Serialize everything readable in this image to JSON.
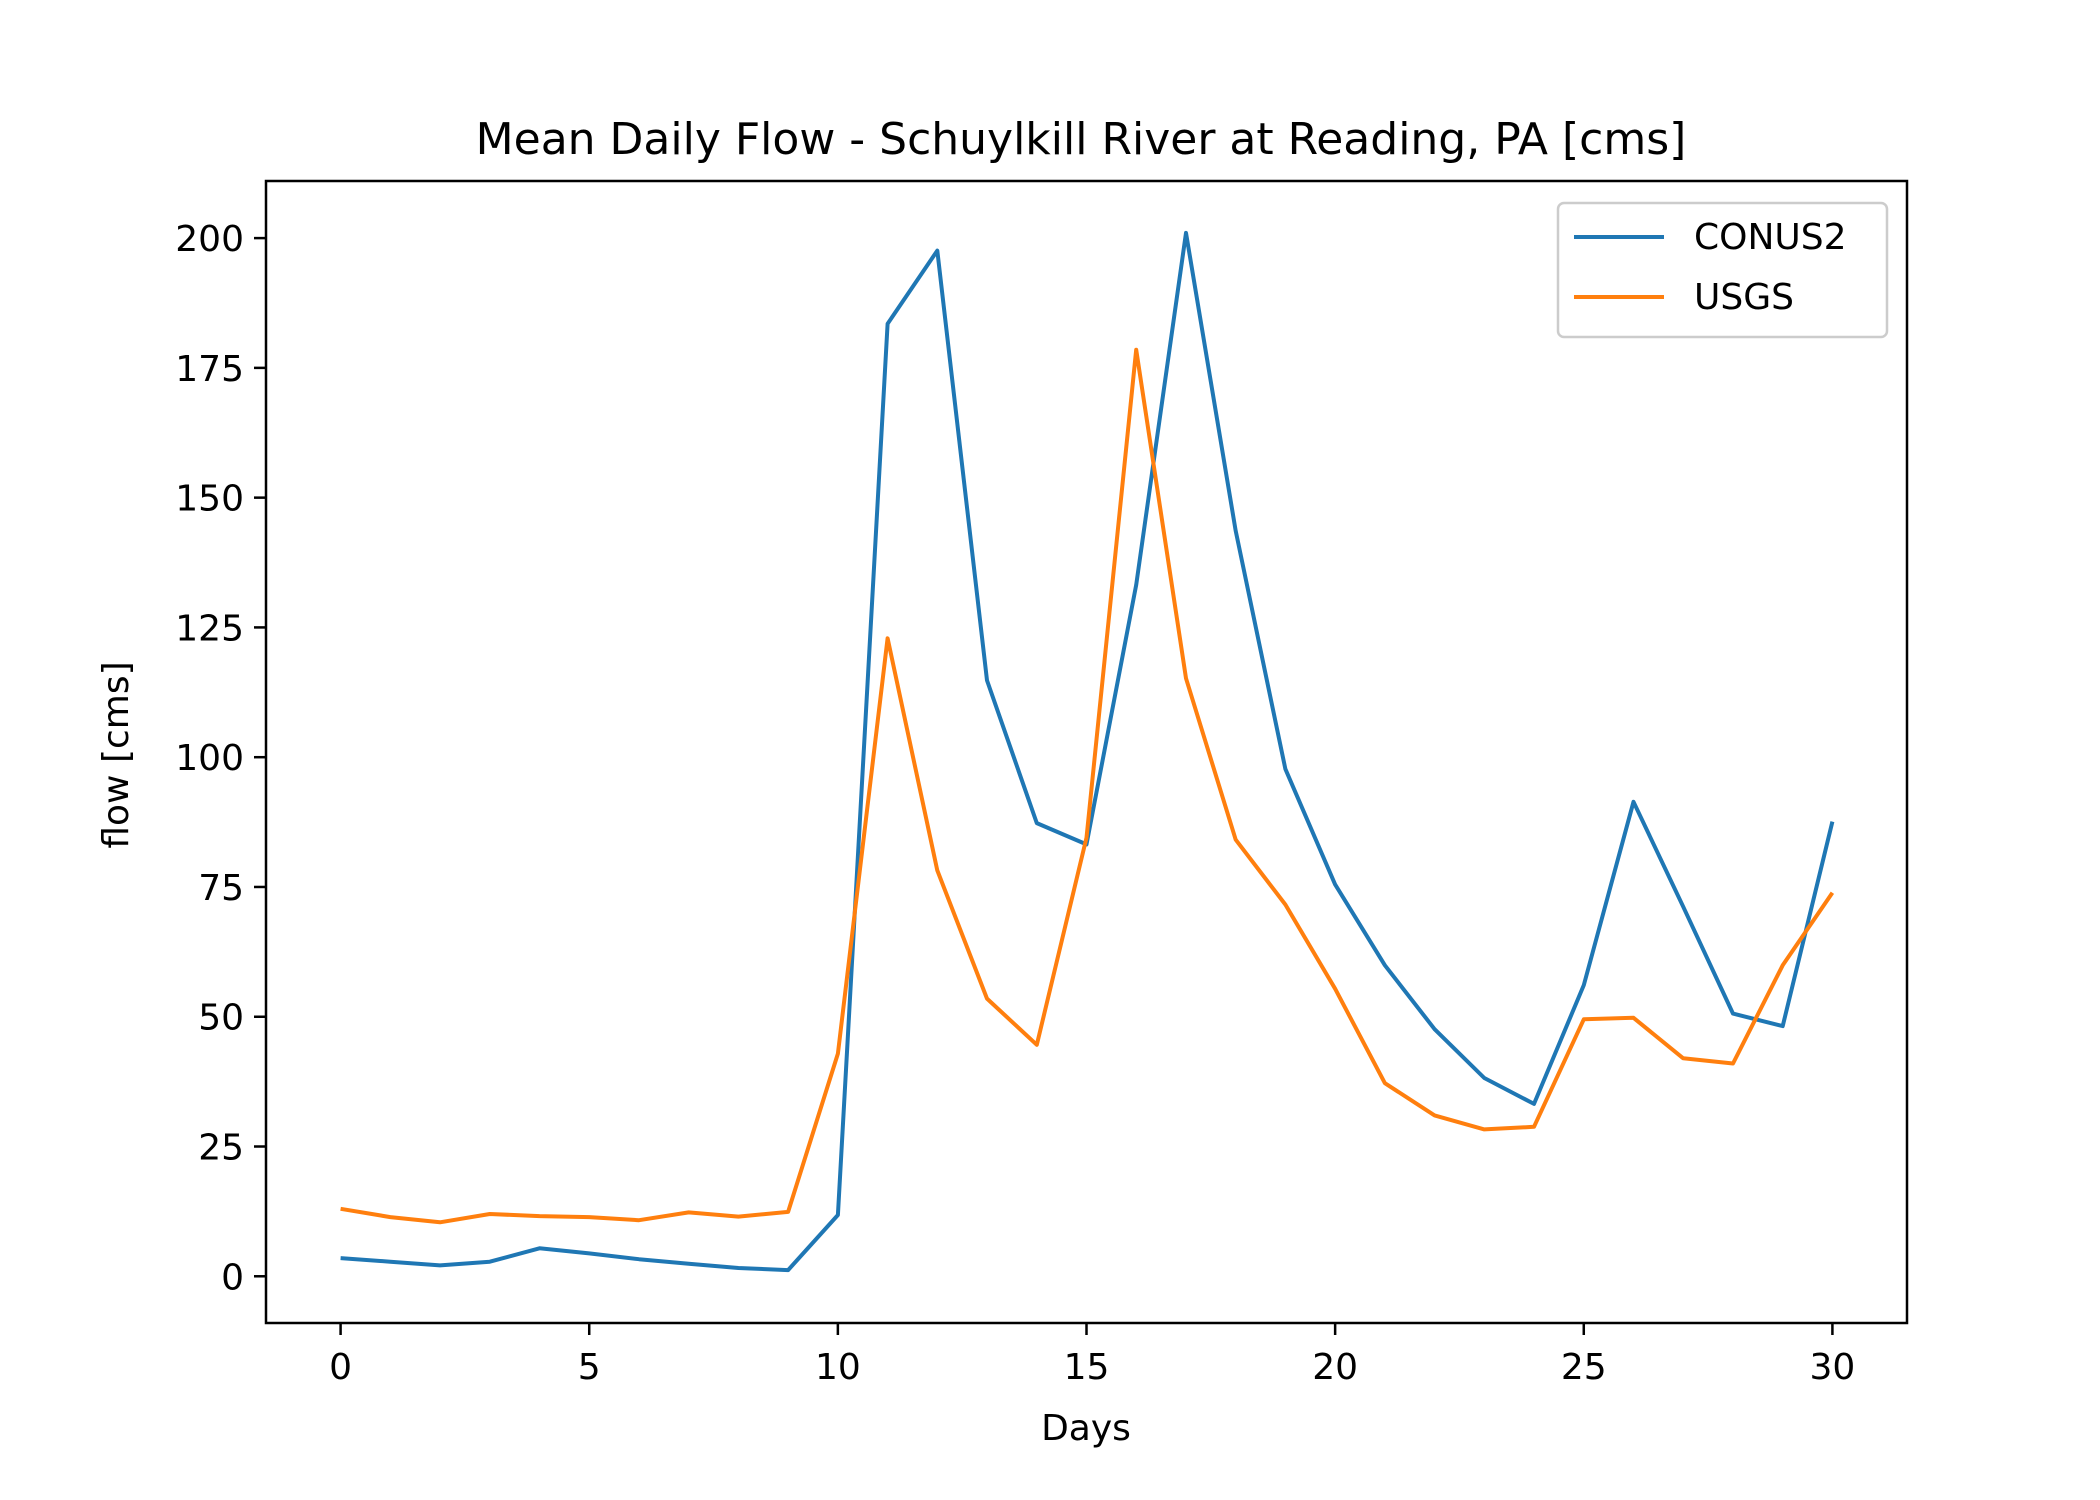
{
  "chart_data": {
    "type": "line",
    "title": "Mean Daily Flow - Schuylkill River at Reading, PA [cms]",
    "xlabel": "Days",
    "ylabel": "flow [cms]",
    "xlim": [
      -1.5,
      31.5
    ],
    "ylim": [
      -9,
      211
    ],
    "xticks": [
      0,
      5,
      10,
      15,
      20,
      25,
      30
    ],
    "yticks": [
      0,
      25,
      50,
      75,
      100,
      125,
      150,
      175,
      200
    ],
    "grid": false,
    "legend_position": "top-right",
    "x": [
      0,
      1,
      2,
      3,
      4,
      5,
      6,
      7,
      8,
      9,
      10,
      11,
      12,
      13,
      14,
      15,
      16,
      17,
      18,
      19,
      20,
      21,
      22,
      23,
      24,
      25,
      26,
      27,
      28,
      29,
      30
    ],
    "series": [
      {
        "name": "CONUS2",
        "color": "#1f77b4",
        "values": [
          3.5,
          2.8,
          2.1,
          2.8,
          5.4,
          4.4,
          3.3,
          2.4,
          1.6,
          1.2,
          11.8,
          183.5,
          197.6,
          114.8,
          87.3,
          83.2,
          133.2,
          201.0,
          143.6,
          97.7,
          75.5,
          59.9,
          47.6,
          38.2,
          33.2,
          56.1,
          91.4,
          71.2,
          50.6,
          48.2,
          87.6
        ]
      },
      {
        "name": "USGS",
        "color": "#ff7f0e",
        "values": [
          13.0,
          11.4,
          10.4,
          12.0,
          11.6,
          11.4,
          10.8,
          12.3,
          11.5,
          12.4,
          42.9,
          122.9,
          78.2,
          53.5,
          44.6,
          84.5,
          178.5,
          115.2,
          84.1,
          71.6,
          55.4,
          37.2,
          31.0,
          28.3,
          28.8,
          49.5,
          49.8,
          42.0,
          41.0,
          59.9,
          73.9
        ]
      }
    ]
  }
}
